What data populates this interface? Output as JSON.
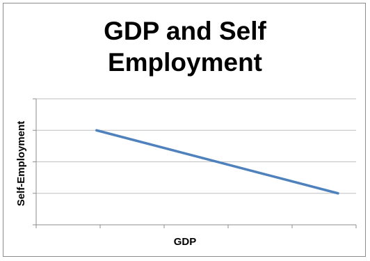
{
  "chart_data": {
    "type": "line",
    "title": "GDP and Self\nEmployment",
    "xlabel": "GDP",
    "ylabel": "Self-Employment",
    "x": [
      1,
      5
    ],
    "series": [
      {
        "values": [
          3,
          1
        ],
        "color": "#4f81bd"
      }
    ],
    "xlim": [
      0,
      5.3
    ],
    "ylim": [
      0,
      4
    ],
    "x_ticks": 5,
    "y_ticks": 4,
    "tick_labels_shown": false,
    "grid": {
      "horizontal": true,
      "vertical": false
    },
    "gridline_color": "#bfbfbf",
    "axis_color": "#8c8c8c"
  }
}
